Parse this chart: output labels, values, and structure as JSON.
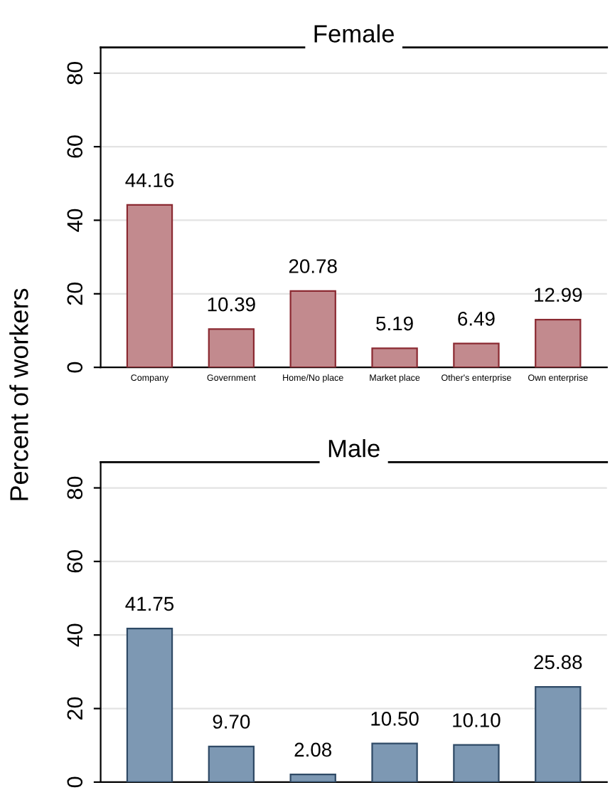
{
  "chart_data": [
    {
      "type": "bar",
      "title": "Female",
      "ylabel": "Percent of workers",
      "categories": [
        "Company",
        "Government",
        "Home/No place",
        "Market place",
        "Other's enterprise",
        "Own enterprise"
      ],
      "series": [
        {
          "color": "#c28a8e",
          "values": [
            44.16,
            10.39,
            20.78,
            5.19,
            6.49,
            12.99
          ],
          "value_labels": [
            "44.16",
            "10.39",
            "20.78",
            "5.19",
            "6.49",
            "12.99"
          ]
        }
      ],
      "ylim": [
        0,
        87
      ],
      "yticks": [
        0,
        20,
        40,
        60,
        80
      ],
      "grid": "y"
    },
    {
      "type": "bar",
      "title": "Male",
      "categories": [
        null,
        null,
        null,
        null,
        null,
        null
      ],
      "series": [
        {
          "color": "#7d98b3",
          "values": [
            41.75,
            9.7,
            2.08,
            10.5,
            10.1,
            25.88
          ],
          "value_labels": [
            "41.75",
            "9.70",
            "2.08",
            "10.50",
            "10.10",
            "25.88"
          ]
        }
      ],
      "ylim": [
        0,
        87
      ],
      "yticks": [
        0,
        20,
        40,
        60,
        80
      ],
      "grid": "y",
      "tick_labels": "y"
    }
  ]
}
